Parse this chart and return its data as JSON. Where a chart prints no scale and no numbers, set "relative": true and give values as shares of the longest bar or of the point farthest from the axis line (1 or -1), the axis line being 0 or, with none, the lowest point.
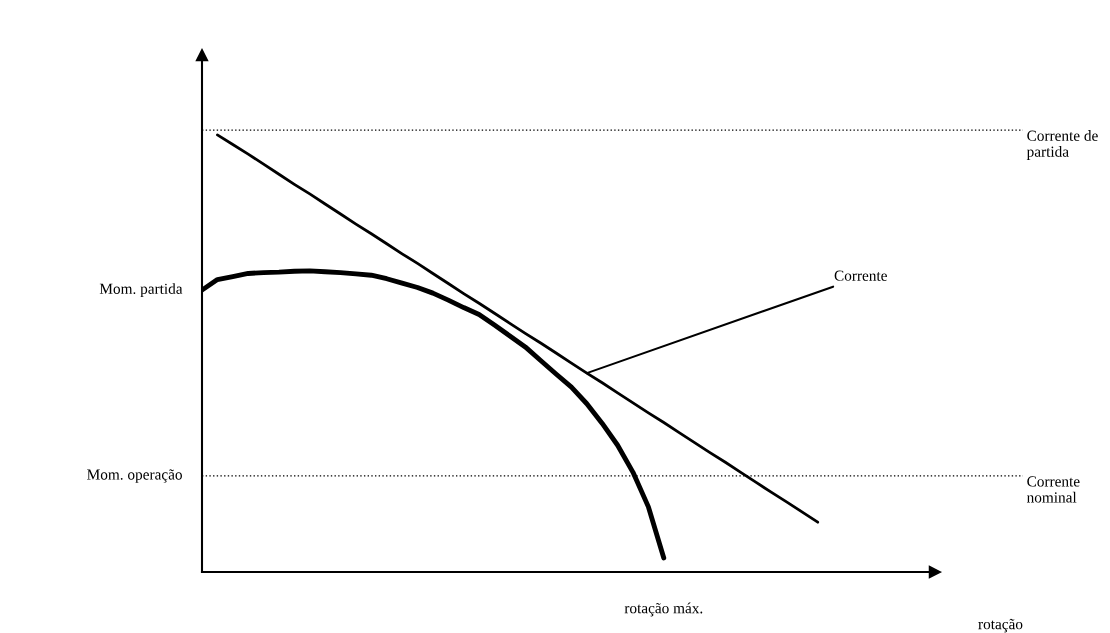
{
  "chart_data": {
    "type": "line",
    "relative": true,
    "marker": "none",
    "line_style": "solid",
    "categories": [
      null,
      null,
      null,
      null,
      null,
      null,
      null,
      null,
      null,
      null,
      null,
      null,
      null,
      null,
      null,
      null,
      null,
      null,
      null,
      null,
      null,
      null,
      null,
      null,
      null,
      null,
      null,
      null,
      null,
      null,
      null,
      null,
      null,
      null,
      null,
      null,
      null,
      null,
      null,
      null,
      null
    ],
    "series": [
      {
        "color": "#000000",
        "values": [
          0.645,
          0.669,
          0.676,
          0.683,
          0.685,
          0.686,
          0.688,
          0.689,
          0.687,
          0.685,
          0.682,
          0.679,
          0.671,
          0.661,
          0.651,
          0.638,
          0.622,
          0.605,
          0.589,
          0.565,
          0.54,
          0.515,
          0.484,
          0.453,
          0.423,
          0.385,
          0.34,
          0.29,
          0.228,
          0.149,
          0.032,
          null,
          null,
          null,
          null,
          null,
          null,
          null,
          null,
          null,
          null
        ]
      },
      {
        "name": "Corrente",
        "color": "#000000",
        "values": [
          null,
          1.0,
          0.978,
          0.956,
          0.933,
          0.91,
          0.887,
          0.865,
          0.842,
          0.819,
          0.796,
          0.774,
          0.751,
          0.728,
          0.706,
          0.683,
          0.66,
          0.637,
          0.615,
          0.592,
          0.569,
          0.546,
          0.524,
          0.501,
          0.478,
          0.455,
          0.433,
          0.41,
          0.387,
          0.364,
          0.342,
          0.319,
          0.296,
          0.273,
          0.251,
          0.228,
          0.205,
          0.182,
          0.16,
          0.137,
          0.114
        ]
      }
    ],
    "ref_lines": [
      {
        "axis": "y",
        "value": 1.011,
        "label": "Corrente de partida",
        "line_style": "dotted",
        "color": "#000000"
      },
      {
        "axis": "y",
        "value": 0.22,
        "label": "Corrente nominal",
        "line_style": "dotted",
        "color": "#000000"
      }
    ],
    "annotations": [
      "Mom. partida",
      "Mom. operação",
      "rotação máx.",
      "rotação"
    ]
  }
}
